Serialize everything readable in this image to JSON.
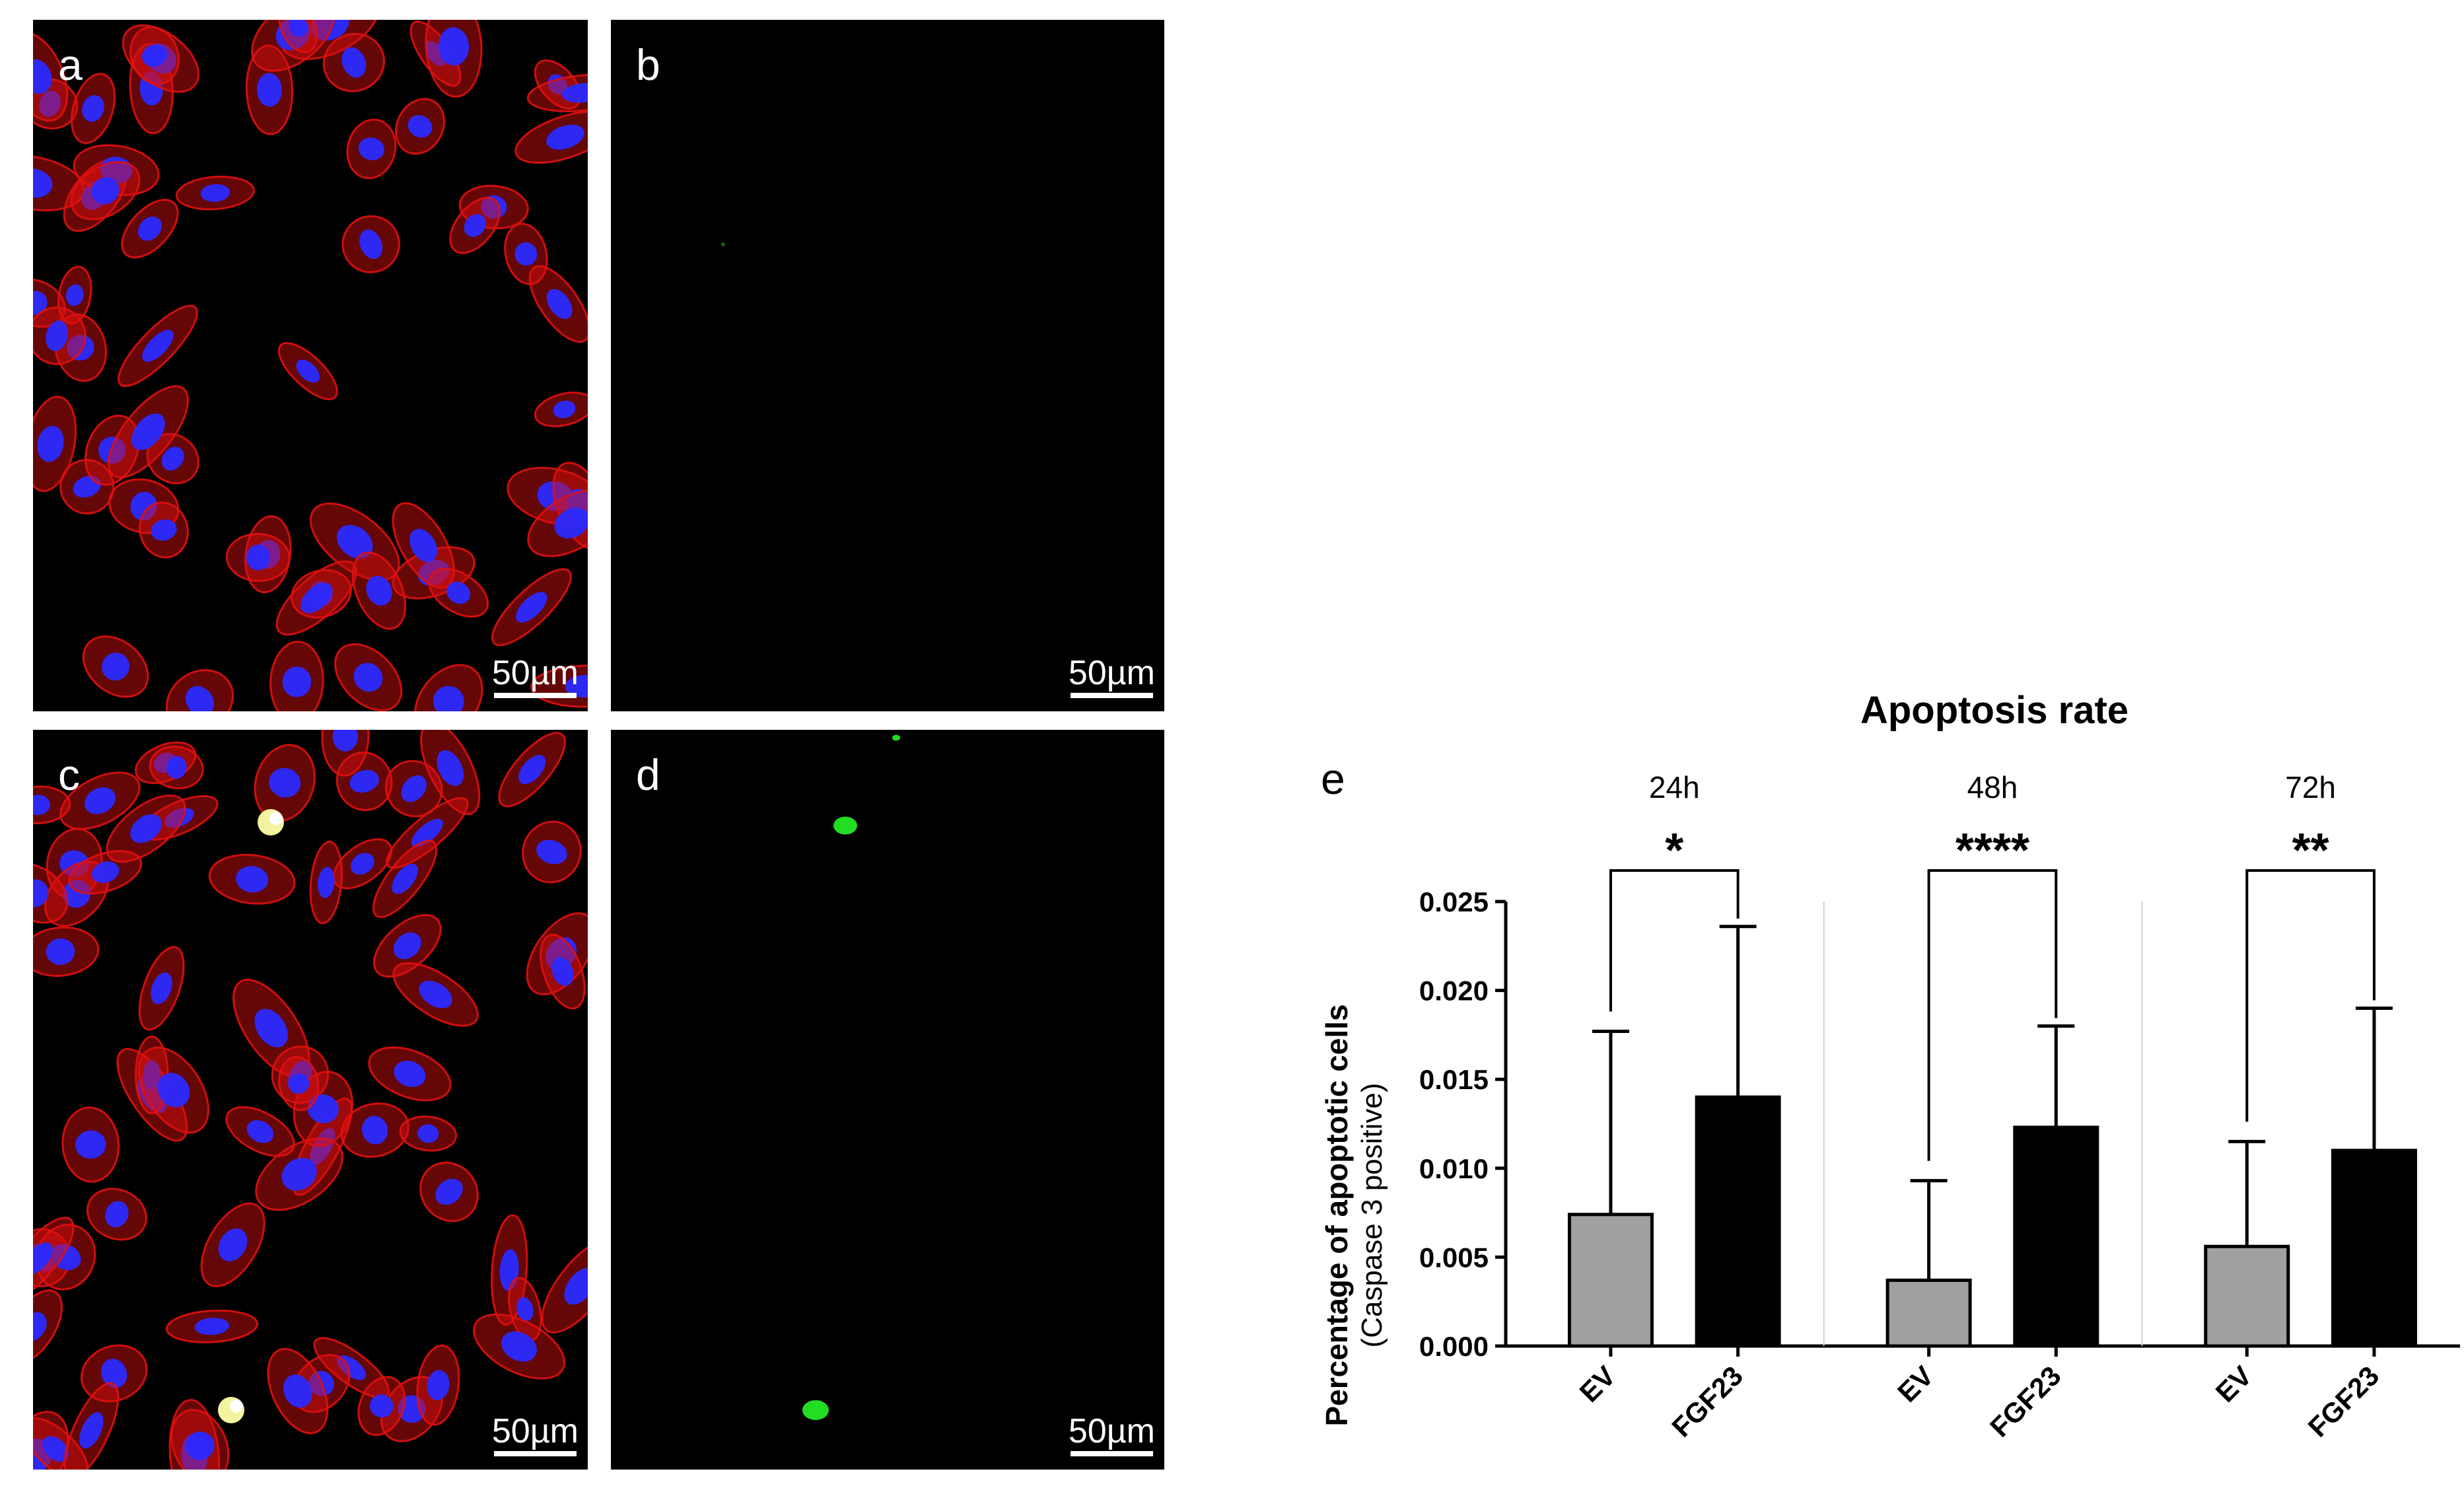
{
  "panels": [
    {
      "id": "a",
      "letter": "a",
      "scalebar": "50µm",
      "stain": "red-blue"
    },
    {
      "id": "b",
      "letter": "b",
      "scalebar": "50µm",
      "stain": "green-empty"
    },
    {
      "id": "c",
      "letter": "c",
      "scalebar": "50µm",
      "stain": "red-blue-apoptotic"
    },
    {
      "id": "d",
      "letter": "d",
      "scalebar": "50µm",
      "stain": "green-sparse"
    }
  ],
  "colors": {
    "ev": "#a0a0a0",
    "fgf23": "#000000",
    "actin": "#e01010",
    "nucleus": "#2a2aff",
    "caspase": "#22dd22"
  },
  "chart_data": {
    "type": "bar",
    "panel_letter": "e",
    "title": "Apoptosis rate",
    "ylabel": "Percentage of apoptotic cells",
    "ylabel_sub": "(Caspase 3 positive)",
    "xlabel": "",
    "ylim": [
      0,
      0.025
    ],
    "yticks": [
      "0.000",
      "0.005",
      "0.010",
      "0.015",
      "0.020",
      "0.025"
    ],
    "groups": [
      {
        "label": "24h",
        "significance": "*",
        "bars": [
          {
            "category": "EV",
            "value": 0.0074,
            "error": 0.0103
          },
          {
            "category": "FGF23",
            "value": 0.014,
            "error": 0.0096
          }
        ]
      },
      {
        "label": "48h",
        "significance": "****",
        "bars": [
          {
            "category": "EV",
            "value": 0.0037,
            "error": 0.0056
          },
          {
            "category": "FGF23",
            "value": 0.0123,
            "error": 0.0057
          }
        ]
      },
      {
        "label": "72h",
        "significance": "**",
        "bars": [
          {
            "category": "EV",
            "value": 0.0056,
            "error": 0.0059
          },
          {
            "category": "FGF23",
            "value": 0.011,
            "error": 0.008
          }
        ]
      }
    ]
  }
}
